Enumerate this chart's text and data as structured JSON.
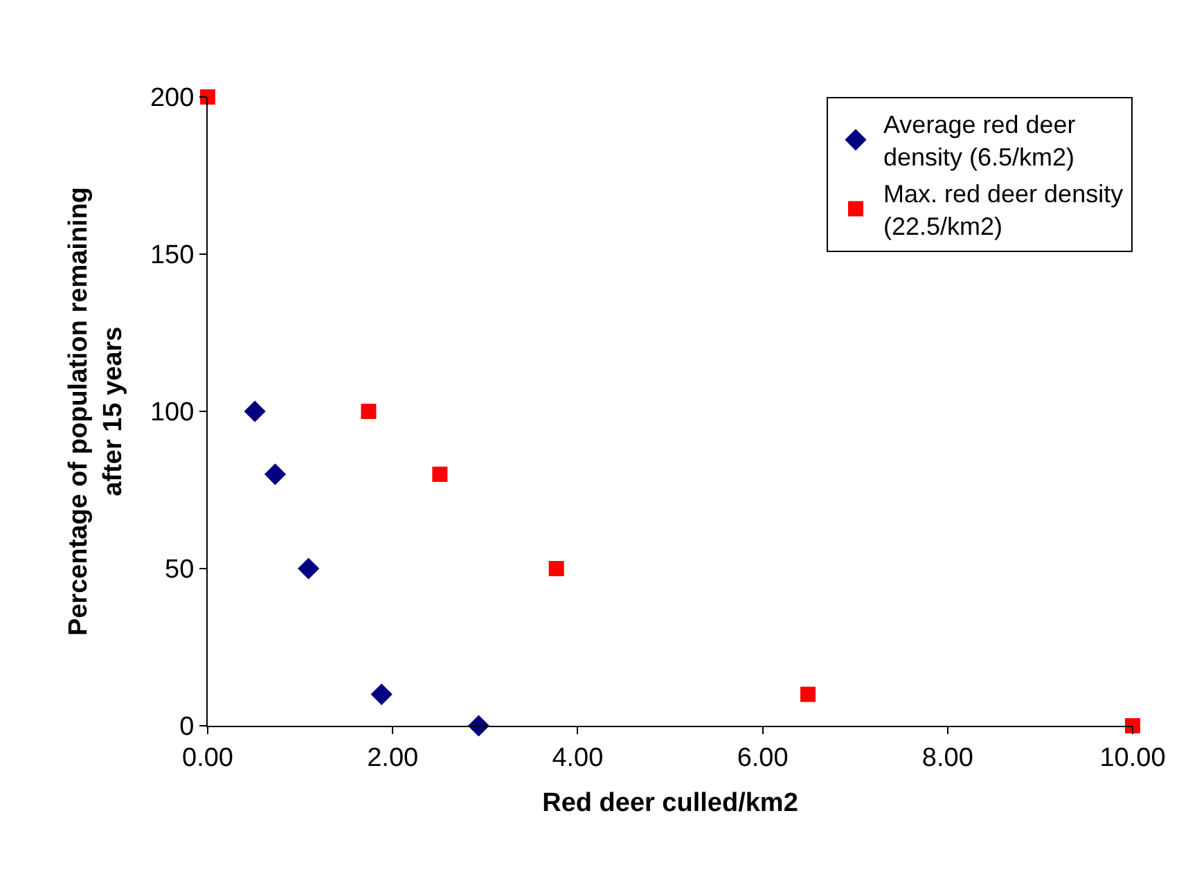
{
  "chart_data": {
    "type": "scatter",
    "xlabel": "Red deer culled/km2",
    "ylabel": "Percentage of population remaining\nafter 15 years",
    "xlim": [
      0,
      10
    ],
    "ylim": [
      0,
      200
    ],
    "xticks": [
      {
        "value": 0,
        "label": "0.00"
      },
      {
        "value": 2,
        "label": "2.00"
      },
      {
        "value": 4,
        "label": "4.00"
      },
      {
        "value": 6,
        "label": "6.00"
      },
      {
        "value": 8,
        "label": "8.00"
      },
      {
        "value": 10,
        "label": "10.00"
      }
    ],
    "yticks": [
      0,
      50,
      100,
      150,
      200
    ],
    "grid": false,
    "legend": "top right",
    "series": [
      {
        "name": "Average red deer\ndensity (6.5/km2)",
        "color": "#000080",
        "marker": "diamond",
        "x": [
          0.51,
          0.73,
          1.09,
          1.88,
          2.93
        ],
        "values": [
          100,
          80,
          50,
          10,
          0
        ]
      },
      {
        "name": "Max. red deer density\n(22.5/km2)",
        "color": "#ff0000",
        "marker": "square",
        "x": [
          0,
          1.74,
          2.51,
          3.77,
          6.49,
          10
        ],
        "values": [
          200,
          100,
          80,
          50,
          10,
          0
        ]
      }
    ]
  }
}
